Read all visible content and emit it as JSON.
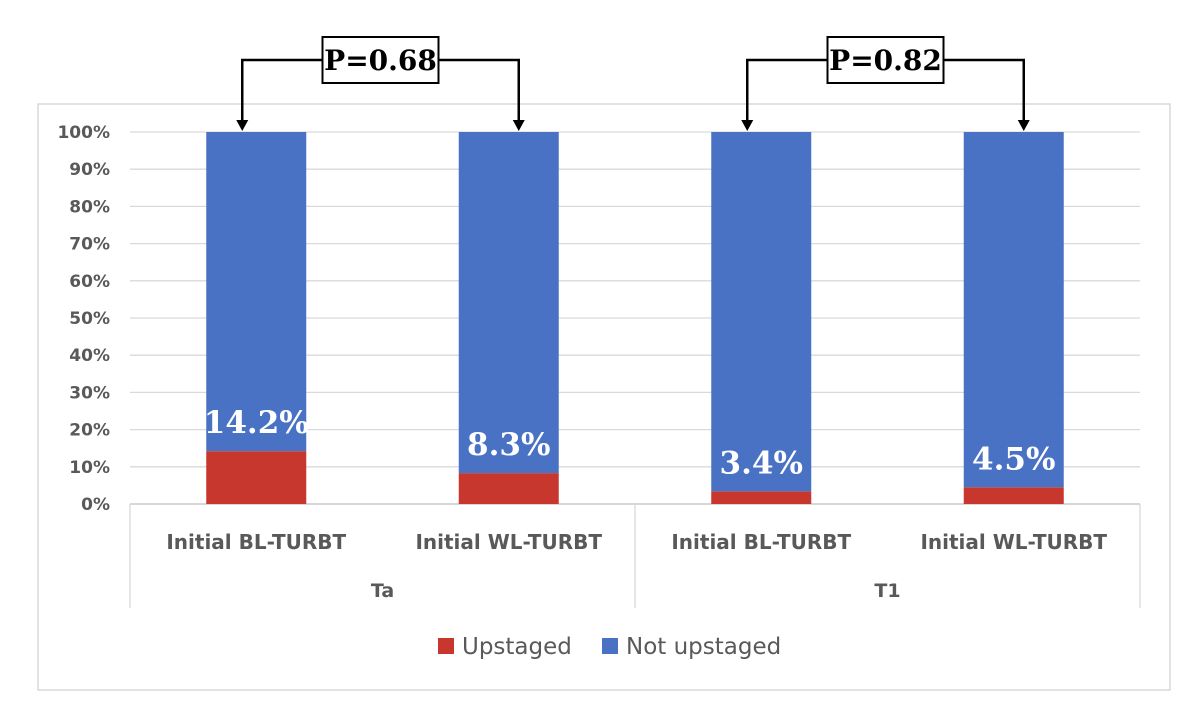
{
  "chart_data": {
    "type": "bar",
    "stacked": true,
    "ylim": [
      0,
      100
    ],
    "y_ticks": [
      "0%",
      "10%",
      "20%",
      "30%",
      "40%",
      "50%",
      "60%",
      "70%",
      "80%",
      "90%",
      "100%"
    ],
    "categories": [
      "Initial BL-TURBT",
      "Initial WL-TURBT",
      "Initial BL-TURBT",
      "Initial WL-TURBT"
    ],
    "groups": [
      {
        "label": "Ta",
        "categories": [
          0,
          1
        ]
      },
      {
        "label": "T1",
        "categories": [
          2,
          3
        ]
      }
    ],
    "series": [
      {
        "name": "Upstaged",
        "color": "#c8372d",
        "values": [
          14.2,
          8.3,
          3.4,
          4.5
        ]
      },
      {
        "name": "Not upstaged",
        "color": "#4a72c4",
        "values": [
          85.8,
          91.7,
          96.6,
          95.5
        ]
      }
    ],
    "data_labels": [
      "14.2%",
      "8.3%",
      "3.4%",
      "4.5%"
    ],
    "annotations": [
      {
        "text": "P=0.68",
        "between": [
          0,
          1
        ]
      },
      {
        "text": "P=0.82",
        "between": [
          2,
          3
        ]
      }
    ],
    "legend_position": "bottom",
    "grid": true
  }
}
